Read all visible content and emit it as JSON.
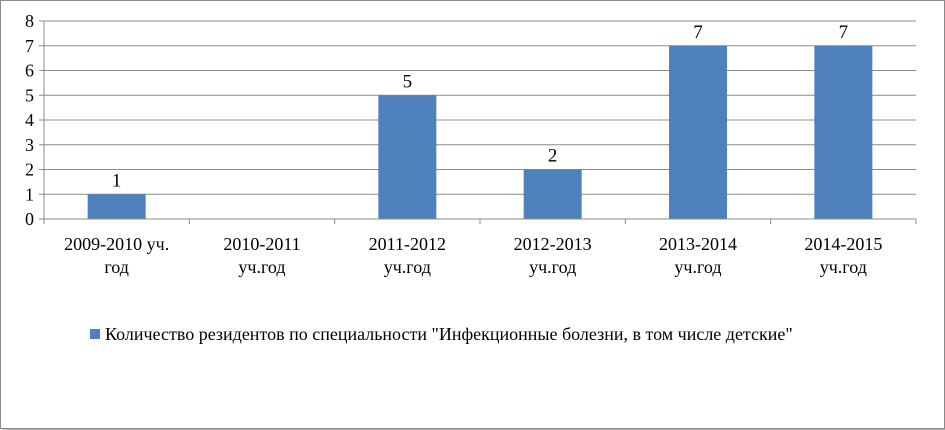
{
  "chart_data": {
    "type": "bar",
    "categories": [
      [
        "2009-2010 уч.",
        "год"
      ],
      [
        "2010-2011",
        "уч.год"
      ],
      [
        "2011-2012",
        "уч.год"
      ],
      [
        "2012-2013",
        "уч.год"
      ],
      [
        "2013-2014",
        "уч.год"
      ],
      [
        "2014-2015",
        "уч.год"
      ]
    ],
    "series": [
      {
        "name": "Количество резидентов по специальности \"Инфекционные болезни, в том числе детские\"",
        "values": [
          1,
          null,
          5,
          2,
          7,
          7
        ],
        "color": "#4f81bd"
      }
    ],
    "data_labels": [
      "1",
      "",
      "5",
      "2",
      "7",
      "7"
    ],
    "ylim": [
      0,
      8
    ],
    "yticks": [
      0,
      1,
      2,
      3,
      4,
      5,
      6,
      7,
      8
    ],
    "grid": true,
    "legend_position": "bottom",
    "xlabel": "",
    "ylabel": "",
    "title": ""
  }
}
